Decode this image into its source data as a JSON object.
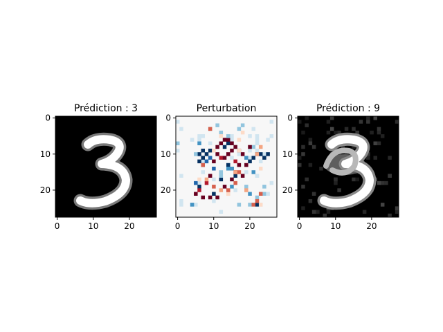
{
  "chart_data": [
    {
      "type": "heatmap",
      "title": "Prédiction : 3",
      "colormap": "gray",
      "grid_size": [
        28,
        28
      ],
      "xticks": [
        "0",
        "10",
        "20"
      ],
      "yticks": [
        "0",
        "10",
        "20"
      ],
      "xlim": [
        -0.5,
        27.5
      ],
      "ylim": [
        27.5,
        -0.5
      ],
      "content": "handwritten digit 3"
    },
    {
      "type": "heatmap",
      "title": "Perturbation",
      "colormap": "RdBu",
      "grid_size": [
        28,
        28
      ],
      "xticks": [
        "0",
        "10",
        "20"
      ],
      "yticks": [
        "0",
        "10",
        "20"
      ],
      "xlim": [
        -0.5,
        27.5
      ],
      "ylim": [
        27.5,
        -0.5
      ],
      "content": "adversarial perturbation pattern"
    },
    {
      "type": "heatmap",
      "title": "Prédiction : 9",
      "colormap": "gray",
      "grid_size": [
        28,
        28
      ],
      "xticks": [
        "0",
        "10",
        "20"
      ],
      "yticks": [
        "0",
        "10",
        "20"
      ],
      "xlim": [
        -0.5,
        27.5
      ],
      "ylim": [
        27.5,
        -0.5
      ],
      "content": "perturbed digit 3 resembling 9"
    }
  ]
}
